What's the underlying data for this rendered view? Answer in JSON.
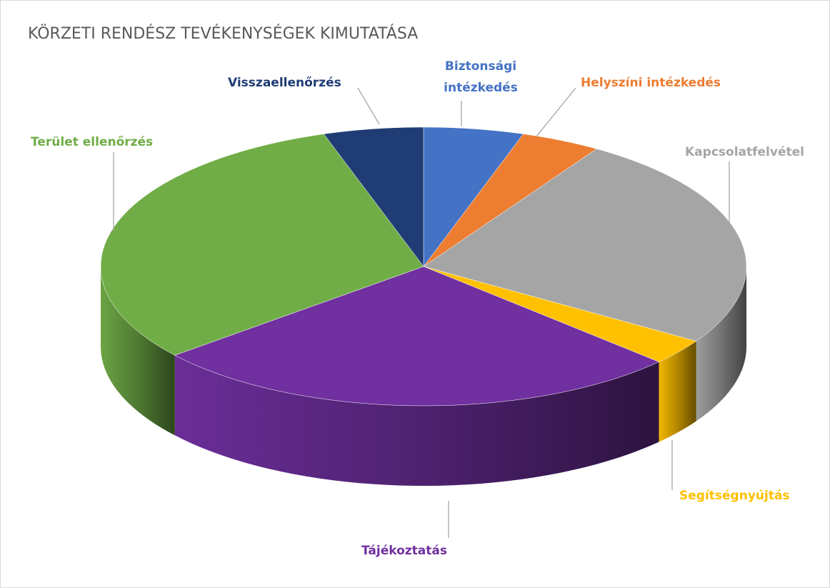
{
  "chart_data": {
    "type": "pie",
    "title": "KÖRZETI RENDÉSZ TEVÉKENYSÉGEK KIMUTATÁSA",
    "categories": [
      "Biztonsági intézkedés",
      "Helyszíni intézkedés",
      "Kapcsolatfelvétel",
      "Segítségnyújtás",
      "Tájékoztatás",
      "Terület ellenőrzés",
      "Visszaellenőrzés"
    ],
    "values": [
      5,
      4,
      25,
      3,
      27,
      31,
      5
    ],
    "colors": [
      "#4472c4",
      "#ed7d31",
      "#a5a5a5",
      "#ffc000",
      "#7030a0",
      "#70ad47",
      "#1f3c74"
    ]
  }
}
